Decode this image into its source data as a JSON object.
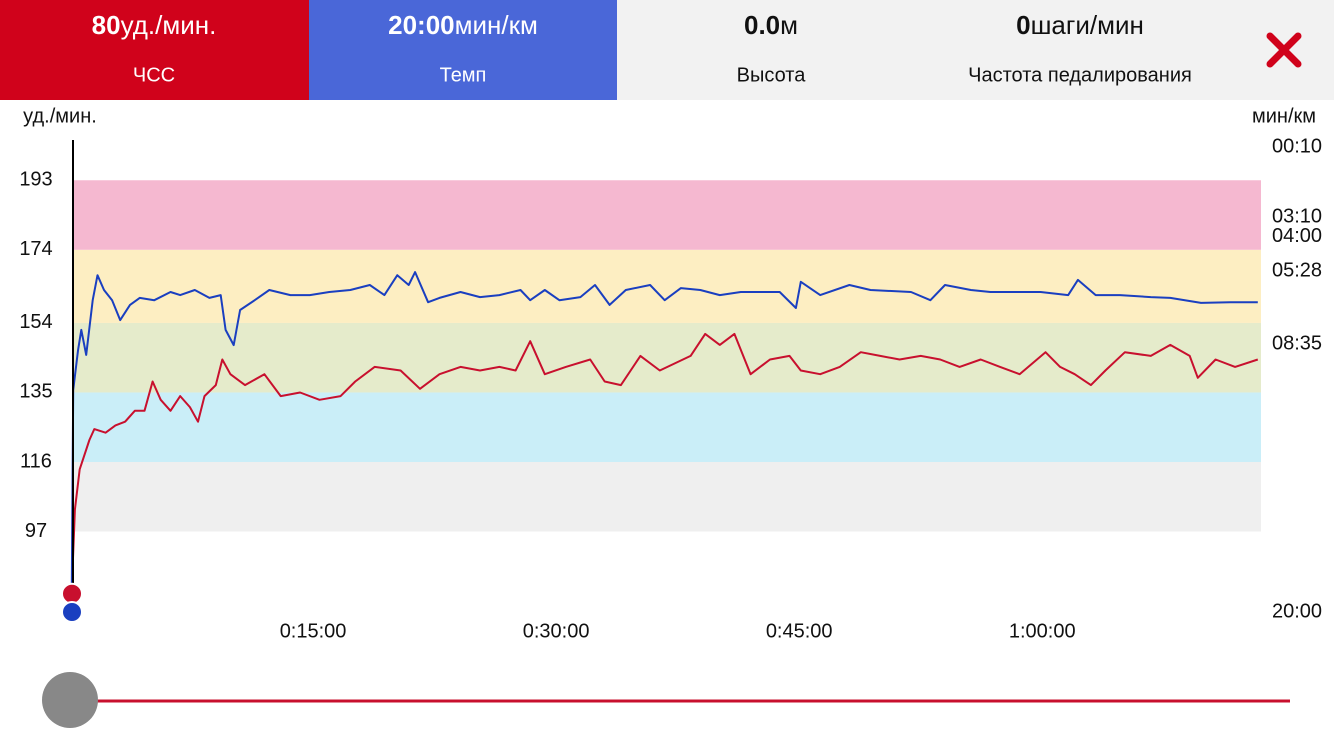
{
  "header": {
    "tiles": [
      {
        "value": "80",
        "unit": "уд./мин.",
        "label": "ЧСС",
        "color": "#d0021b"
      },
      {
        "value": "20:00",
        "unit": "мин/км",
        "label": "Темп",
        "color": "#4a67d8"
      },
      {
        "value": "0.0",
        "unit": "м",
        "label": "Высота",
        "color": "#f2f2f2"
      },
      {
        "value": "0",
        "unit": "шаги/мин",
        "label": "Частота педалирования",
        "color": "#f2f2f2"
      }
    ]
  },
  "chart_data": {
    "type": "line",
    "ylabel": "уд./мин.",
    "y2label": "мин/км",
    "xlim": [
      0,
      73.5
    ],
    "xticks": [
      {
        "value": 15,
        "label": "0:15:00"
      },
      {
        "value": 30,
        "label": "0:30:00"
      },
      {
        "value": 45,
        "label": "0:45:00"
      },
      {
        "value": 60,
        "label": "1:00:00"
      }
    ],
    "ylim": [
      75,
      204
    ],
    "yticks": [
      97,
      116,
      135,
      154,
      174,
      193
    ],
    "y2lim": [
      -8,
      1200
    ],
    "y2_inverted": true,
    "y2ticks": [
      {
        "value": 10,
        "label": "00:10"
      },
      {
        "value": 190,
        "label": "03:10"
      },
      {
        "value": 240,
        "label": "04:00"
      },
      {
        "value": 328,
        "label": "05:28"
      },
      {
        "value": 515,
        "label": "08:35"
      },
      {
        "value": 1200,
        "label": "20:00"
      }
    ],
    "zones": [
      {
        "from": 97,
        "to": 116,
        "color": "#efefef"
      },
      {
        "from": 116,
        "to": 135,
        "color": "#caeef8"
      },
      {
        "from": 135,
        "to": 154,
        "color": "#e5ebcb"
      },
      {
        "from": 154,
        "to": 174,
        "color": "#fdeec2"
      },
      {
        "from": 174,
        "to": 193,
        "color": "#f5b8d0"
      }
    ],
    "series": [
      {
        "color": "#c8102e",
        "axis": "y",
        "x": [
          0.1,
          0.3,
          0.6,
          1.2,
          1.5,
          2.2,
          2.8,
          3.4,
          4,
          4.6,
          5.1,
          5.6,
          6.2,
          6.8,
          7.4,
          7.9,
          8.3,
          9,
          9.4,
          9.9,
          10.8,
          12,
          13,
          14.2,
          15.4,
          16.7,
          17.6,
          18.8,
          20.4,
          21.6,
          22.8,
          24.1,
          25.3,
          26.5,
          27.5,
          28.4,
          29.3,
          30.6,
          32.1,
          33,
          34,
          35.2,
          36.4,
          38.3,
          39.2,
          40.1,
          41,
          42,
          43.2,
          44.4,
          45.1,
          46.3,
          47.5,
          48.8,
          50,
          51.2,
          52.5,
          53.7,
          54.9,
          56.2,
          57.4,
          58.6,
          60.2,
          61.1,
          62,
          63,
          63.9,
          65.1,
          66.7,
          67.9,
          69.1,
          69.6,
          70.7,
          71.9,
          73.3
        ],
        "values": [
          80,
          103,
          114,
          122,
          125,
          124,
          126,
          127,
          130,
          130,
          138,
          133,
          130,
          134,
          131,
          127,
          134,
          137,
          144,
          140,
          137,
          140,
          134,
          135,
          133,
          134,
          138,
          142,
          141,
          136,
          140,
          142,
          141,
          142,
          141,
          149,
          140,
          142,
          144,
          138,
          137,
          145,
          141,
          145,
          151,
          148,
          151,
          140,
          144,
          145,
          141,
          140,
          142,
          146,
          145,
          144,
          145,
          144,
          142,
          144,
          142,
          140,
          146,
          142,
          140,
          137,
          141,
          146,
          145,
          148,
          145,
          139,
          144,
          142,
          144
        ]
      },
      {
        "color": "#1a3fc0",
        "axis": "y2",
        "x": [
          0.1,
          0.2,
          0.5,
          0.7,
          1,
          1.4,
          1.7,
          2.1,
          2.6,
          3.1,
          3.7,
          4.3,
          5.2,
          6.2,
          6.8,
          7.7,
          8.6,
          9.3,
          9.6,
          10.1,
          10.5,
          11.4,
          12.3,
          13.6,
          14.8,
          16.0,
          17.3,
          18.5,
          19.4,
          20.2,
          20.9,
          21.3,
          22.1,
          22.8,
          24.1,
          25.3,
          26.5,
          27.8,
          28.4,
          29.3,
          30.2,
          31.5,
          32.4,
          33.3,
          34.3,
          35.8,
          36.7,
          37.7,
          38.9,
          40.1,
          41.4,
          42.6,
          43.8,
          44.8,
          45.1,
          46.3,
          48.1,
          49.4,
          51.9,
          53.1,
          54,
          55.6,
          56.8,
          58,
          59.9,
          61.6,
          62.2,
          63.3,
          64.8,
          66.7,
          67.9,
          69.8,
          71.6,
          73.3
        ],
        "values": [
          1200,
          632,
          529,
          478,
          542,
          402,
          338,
          376,
          402,
          453,
          414,
          396,
          402,
          381,
          389,
          376,
          396,
          389,
          478,
          517,
          427,
          402,
          376,
          389,
          389,
          381,
          376,
          363,
          389,
          338,
          363,
          330,
          407,
          396,
          381,
          394,
          389,
          376,
          402,
          376,
          402,
          394,
          363,
          414,
          376,
          363,
          402,
          371,
          376,
          389,
          381,
          381,
          381,
          422,
          355,
          389,
          363,
          376,
          381,
          402,
          363,
          376,
          381,
          381,
          381,
          389,
          350,
          389,
          389,
          394,
          396,
          409,
          407,
          407
        ]
      }
    ]
  }
}
